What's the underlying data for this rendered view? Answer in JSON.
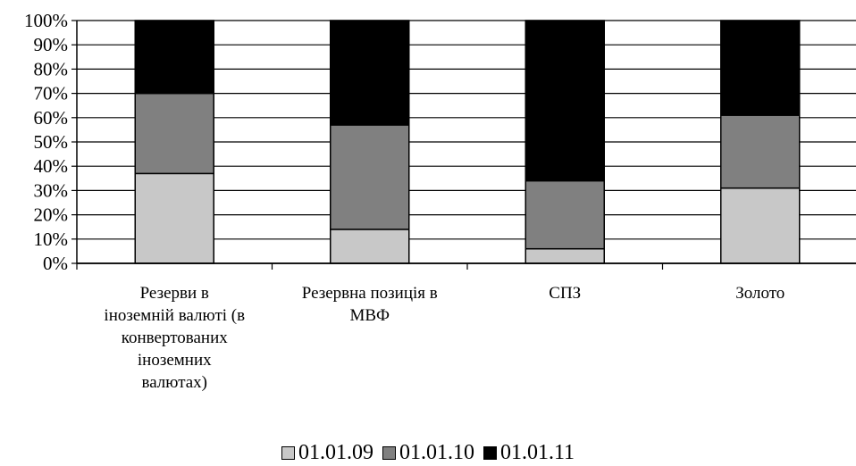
{
  "chart_data": {
    "type": "bar",
    "stacked": true,
    "percent": true,
    "categories": [
      "Резерви в іноземній валюті (в конвертованих іноземних валютах)",
      "Резервна позиція в МВФ",
      "СПЗ",
      "Золото"
    ],
    "category_lines": [
      [
        "Резерви в",
        "іноземній валюті (в",
        "конвертованих",
        "іноземних",
        "валютах)"
      ],
      [
        "Резервна позиція в",
        "МВФ"
      ],
      [
        "СПЗ"
      ],
      [
        "Золото"
      ]
    ],
    "series": [
      {
        "name": "01.01.09",
        "color": "#c8c8c8",
        "values": [
          37,
          14,
          6,
          31
        ]
      },
      {
        "name": "01.01.10",
        "color": "#808080",
        "values": [
          33,
          43,
          28,
          30
        ]
      },
      {
        "name": "01.01.11",
        "color": "#000000",
        "values": [
          30,
          43,
          66,
          39
        ]
      }
    ],
    "ylim": [
      0,
      100
    ],
    "yticks": [
      "0%",
      "10%",
      "20%",
      "30%",
      "40%",
      "50%",
      "60%",
      "70%",
      "80%",
      "90%",
      "100%"
    ],
    "grid": true,
    "legend": "bottom"
  }
}
